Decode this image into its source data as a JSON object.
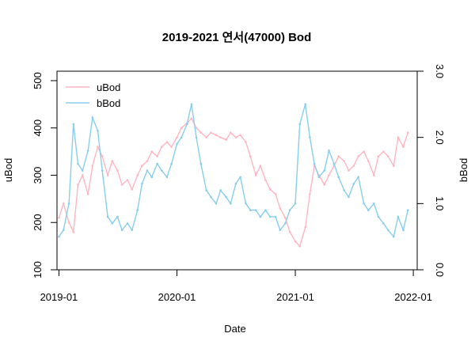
{
  "chart_data": {
    "type": "line",
    "title": "2019-2021 연서(47000) Bod",
    "xlabel": "Date",
    "ylabel_left": "uBod",
    "ylabel_right": "bBod",
    "x_tick_labels": [
      "2019-01",
      "2020-01",
      "2021-01",
      "2022-01"
    ],
    "x_tick_dates": [
      "2019-01-01",
      "2020-01-01",
      "2021-01-01",
      "2022-01-01"
    ],
    "xlim": [
      "2019-01-01",
      "2022-01-01"
    ],
    "left_axis": {
      "ylim": [
        100,
        520
      ],
      "ticks": [
        100,
        200,
        300,
        400,
        500
      ]
    },
    "right_axis": {
      "ylim": [
        0,
        3.0
      ],
      "ticks": [
        0.0,
        1.0,
        2.0,
        3.0
      ]
    },
    "legend": {
      "position": "top-left",
      "entries": [
        "uBod",
        "bBod"
      ]
    },
    "grid": false,
    "series": [
      {
        "name": "uBod",
        "axis": "left",
        "color": "#FFB6C1",
        "points": [
          [
            "2019-01-01",
            210
          ],
          [
            "2019-01-15",
            240
          ],
          [
            "2019-02-01",
            200
          ],
          [
            "2019-02-15",
            180
          ],
          [
            "2019-03-01",
            280
          ],
          [
            "2019-03-15",
            300
          ],
          [
            "2019-04-01",
            260
          ],
          [
            "2019-04-15",
            320
          ],
          [
            "2019-05-01",
            360
          ],
          [
            "2019-05-15",
            340
          ],
          [
            "2019-06-01",
            300
          ],
          [
            "2019-06-15",
            330
          ],
          [
            "2019-07-01",
            310
          ],
          [
            "2019-07-15",
            280
          ],
          [
            "2019-08-01",
            290
          ],
          [
            "2019-08-15",
            270
          ],
          [
            "2019-09-01",
            300
          ],
          [
            "2019-09-15",
            320
          ],
          [
            "2019-10-01",
            330
          ],
          [
            "2019-10-15",
            350
          ],
          [
            "2019-11-01",
            340
          ],
          [
            "2019-11-15",
            360
          ],
          [
            "2019-12-01",
            370
          ],
          [
            "2019-12-15",
            360
          ],
          [
            "2020-01-01",
            380
          ],
          [
            "2020-01-15",
            400
          ],
          [
            "2020-02-01",
            410
          ],
          [
            "2020-02-15",
            420
          ],
          [
            "2020-03-01",
            400
          ],
          [
            "2020-03-15",
            390
          ],
          [
            "2020-04-01",
            380
          ],
          [
            "2020-04-15",
            390
          ],
          [
            "2020-05-01",
            385
          ],
          [
            "2020-05-15",
            380
          ],
          [
            "2020-06-01",
            375
          ],
          [
            "2020-06-15",
            390
          ],
          [
            "2020-07-01",
            380
          ],
          [
            "2020-07-15",
            385
          ],
          [
            "2020-08-01",
            370
          ],
          [
            "2020-08-15",
            340
          ],
          [
            "2020-09-01",
            300
          ],
          [
            "2020-09-15",
            320
          ],
          [
            "2020-10-01",
            290
          ],
          [
            "2020-10-15",
            270
          ],
          [
            "2020-11-01",
            260
          ],
          [
            "2020-11-15",
            230
          ],
          [
            "2020-12-01",
            210
          ],
          [
            "2020-12-15",
            180
          ],
          [
            "2021-01-01",
            160
          ],
          [
            "2021-01-15",
            150
          ],
          [
            "2021-02-01",
            190
          ],
          [
            "2021-02-15",
            260
          ],
          [
            "2021-03-01",
            320
          ],
          [
            "2021-03-15",
            300
          ],
          [
            "2021-04-01",
            280
          ],
          [
            "2021-04-15",
            300
          ],
          [
            "2021-05-01",
            320
          ],
          [
            "2021-05-15",
            340
          ],
          [
            "2021-06-01",
            330
          ],
          [
            "2021-06-15",
            310
          ],
          [
            "2021-07-01",
            320
          ],
          [
            "2021-07-15",
            340
          ],
          [
            "2021-08-01",
            350
          ],
          [
            "2021-08-15",
            330
          ],
          [
            "2021-09-01",
            300
          ],
          [
            "2021-09-15",
            340
          ],
          [
            "2021-10-01",
            350
          ],
          [
            "2021-10-15",
            340
          ],
          [
            "2021-11-01",
            320
          ],
          [
            "2021-11-15",
            380
          ],
          [
            "2021-12-01",
            360
          ],
          [
            "2021-12-15",
            390
          ]
        ]
      },
      {
        "name": "bBod",
        "axis": "right",
        "color": "#87CEEB",
        "points": [
          [
            "2019-01-01",
            0.5
          ],
          [
            "2019-01-15",
            0.6
          ],
          [
            "2019-02-01",
            1.0
          ],
          [
            "2019-02-15",
            2.2
          ],
          [
            "2019-03-01",
            1.6
          ],
          [
            "2019-03-15",
            1.5
          ],
          [
            "2019-04-01",
            1.8
          ],
          [
            "2019-04-15",
            2.3
          ],
          [
            "2019-05-01",
            2.1
          ],
          [
            "2019-05-15",
            1.5
          ],
          [
            "2019-06-01",
            0.8
          ],
          [
            "2019-06-15",
            0.7
          ],
          [
            "2019-07-01",
            0.8
          ],
          [
            "2019-07-15",
            0.6
          ],
          [
            "2019-08-01",
            0.7
          ],
          [
            "2019-08-15",
            0.6
          ],
          [
            "2019-09-01",
            0.9
          ],
          [
            "2019-09-15",
            1.3
          ],
          [
            "2019-10-01",
            1.5
          ],
          [
            "2019-10-15",
            1.4
          ],
          [
            "2019-11-01",
            1.6
          ],
          [
            "2019-11-15",
            1.5
          ],
          [
            "2019-12-01",
            1.4
          ],
          [
            "2019-12-15",
            1.6
          ],
          [
            "2020-01-01",
            1.9
          ],
          [
            "2020-01-15",
            2.0
          ],
          [
            "2020-02-01",
            2.2
          ],
          [
            "2020-02-15",
            2.5
          ],
          [
            "2020-03-01",
            2.0
          ],
          [
            "2020-03-15",
            1.6
          ],
          [
            "2020-04-01",
            1.2
          ],
          [
            "2020-04-15",
            1.1
          ],
          [
            "2020-05-01",
            1.0
          ],
          [
            "2020-05-15",
            1.2
          ],
          [
            "2020-06-01",
            1.1
          ],
          [
            "2020-06-15",
            1.0
          ],
          [
            "2020-07-01",
            1.3
          ],
          [
            "2020-07-15",
            1.4
          ],
          [
            "2020-08-01",
            1.0
          ],
          [
            "2020-08-15",
            0.9
          ],
          [
            "2020-09-01",
            0.9
          ],
          [
            "2020-09-15",
            0.8
          ],
          [
            "2020-10-01",
            0.9
          ],
          [
            "2020-10-15",
            0.8
          ],
          [
            "2020-11-01",
            0.8
          ],
          [
            "2020-11-15",
            0.6
          ],
          [
            "2020-12-01",
            0.7
          ],
          [
            "2020-12-15",
            0.9
          ],
          [
            "2021-01-01",
            1.0
          ],
          [
            "2021-01-15",
            2.2
          ],
          [
            "2021-02-01",
            2.5
          ],
          [
            "2021-02-15",
            2.0
          ],
          [
            "2021-03-01",
            1.6
          ],
          [
            "2021-03-15",
            1.4
          ],
          [
            "2021-04-01",
            1.5
          ],
          [
            "2021-04-15",
            1.8
          ],
          [
            "2021-05-01",
            1.6
          ],
          [
            "2021-05-15",
            1.4
          ],
          [
            "2021-06-01",
            1.2
          ],
          [
            "2021-06-15",
            1.1
          ],
          [
            "2021-07-01",
            1.3
          ],
          [
            "2021-07-15",
            1.4
          ],
          [
            "2021-08-01",
            1.0
          ],
          [
            "2021-08-15",
            0.9
          ],
          [
            "2021-09-01",
            1.0
          ],
          [
            "2021-09-15",
            0.8
          ],
          [
            "2021-10-01",
            0.7
          ],
          [
            "2021-10-15",
            0.6
          ],
          [
            "2021-11-01",
            0.5
          ],
          [
            "2021-11-15",
            0.8
          ],
          [
            "2021-12-01",
            0.6
          ],
          [
            "2021-12-15",
            0.9
          ]
        ]
      }
    ]
  }
}
